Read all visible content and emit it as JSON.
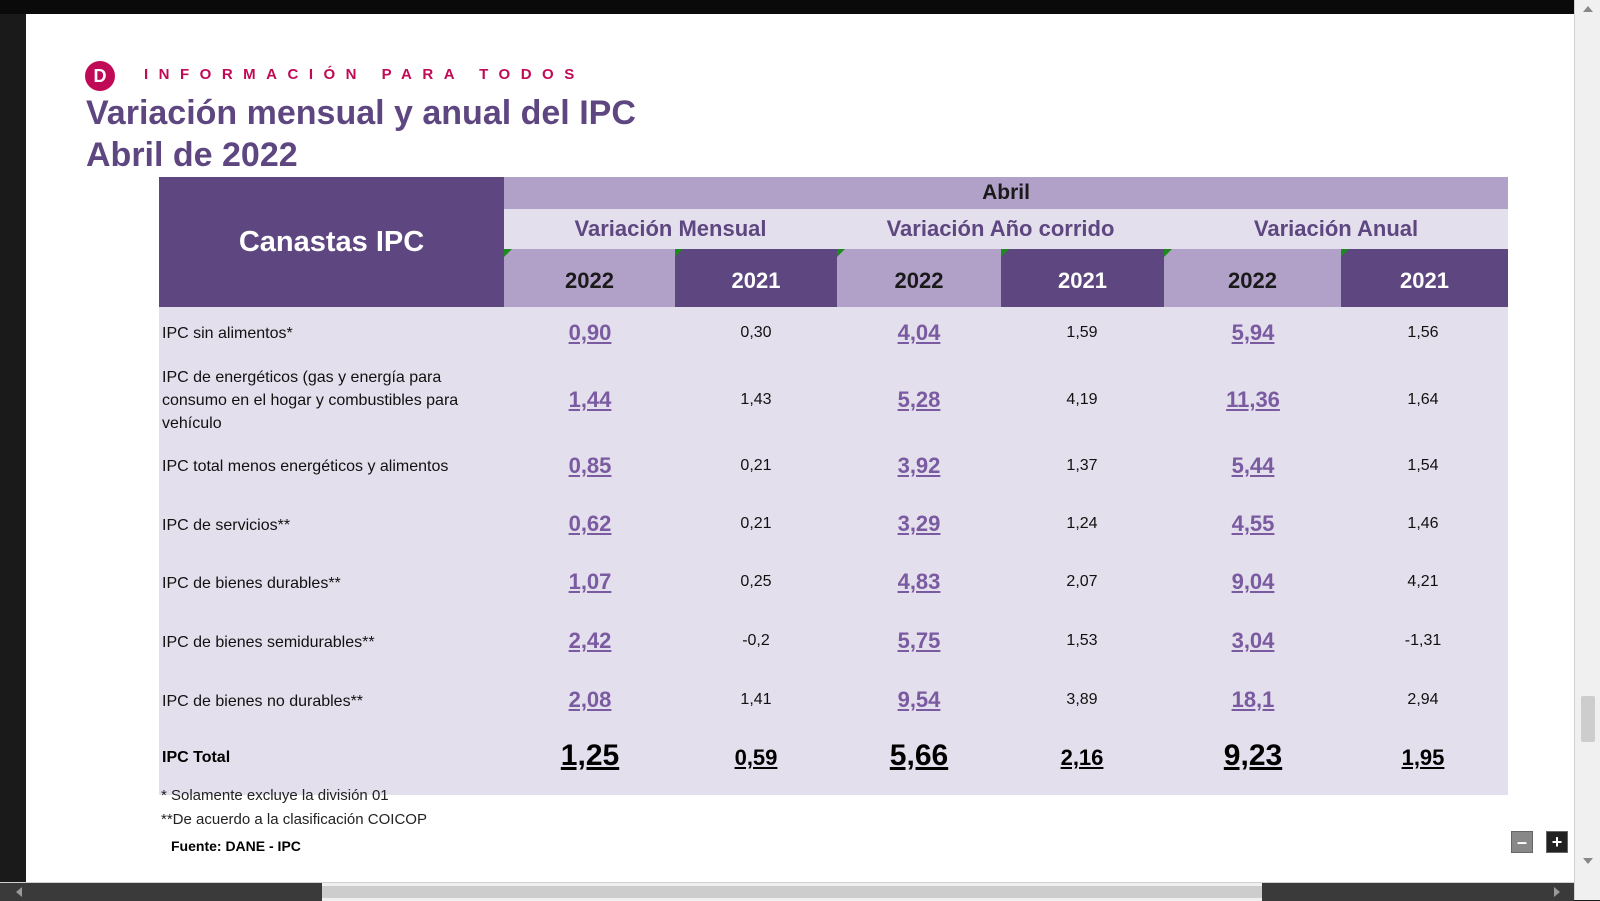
{
  "header": {
    "logo_letter": "D",
    "tagline": "INFORMACIÓN PARA TODOS",
    "title_line1": "Variación mensual y anual del IPC",
    "title_line2": "Abril de 2022"
  },
  "colors": {
    "brand": "#c10a55",
    "purple_dark": "#5e4780",
    "purple_light": "#b1a0c8",
    "lavender": "#e4dfec"
  },
  "table": {
    "row_header_title": "Canastas IPC",
    "month": "Abril",
    "groups": [
      "Variación Mensual",
      "Variación Año corrido",
      "Variación Anual"
    ],
    "years": [
      "2022",
      "2021",
      "2022",
      "2021",
      "2022",
      "2021"
    ],
    "rows": [
      {
        "label": "IPC sin alimentos*",
        "values": [
          "0,90",
          "0,30",
          "4,04",
          "1,59",
          "5,94",
          "1,56"
        ]
      },
      {
        "label": "IPC de energéticos (gas y energía para consumo en el hogar y combustibles para vehículo",
        "values": [
          "1,44",
          "1,43",
          "5,28",
          "4,19",
          "11,36",
          "1,64"
        ]
      },
      {
        "label": "IPC total menos energéticos y alimentos",
        "values": [
          "0,85",
          "0,21",
          "3,92",
          "1,37",
          "5,44",
          "1,54"
        ]
      },
      {
        "label": "IPC de servicios**",
        "values": [
          "0,62",
          "0,21",
          "3,29",
          "1,24",
          "4,55",
          "1,46"
        ]
      },
      {
        "label": "IPC de bienes durables**",
        "values": [
          "1,07",
          "0,25",
          "4,83",
          "2,07",
          "9,04",
          "4,21"
        ]
      },
      {
        "label": "IPC de bienes semidurables**",
        "values": [
          "2,42",
          "-0,2",
          "5,75",
          "1,53",
          "3,04",
          "-1,31"
        ]
      },
      {
        "label": "IPC de bienes no durables**",
        "values": [
          "2,08",
          "1,41",
          "9,54",
          "3,89",
          "18,1",
          "2,94"
        ]
      }
    ],
    "total": {
      "label": "IPC Total",
      "values": [
        "1,25",
        "0,59",
        "5,66",
        "2,16",
        "9,23",
        "1,95"
      ]
    }
  },
  "footnotes": {
    "note1": "* Solamente excluye la división 01",
    "note2": "**De acuerdo a la clasificación COICOP",
    "source": "Fuente: DANE - IPC"
  },
  "controls": {
    "zoom_out": "–",
    "zoom_in": "+"
  }
}
